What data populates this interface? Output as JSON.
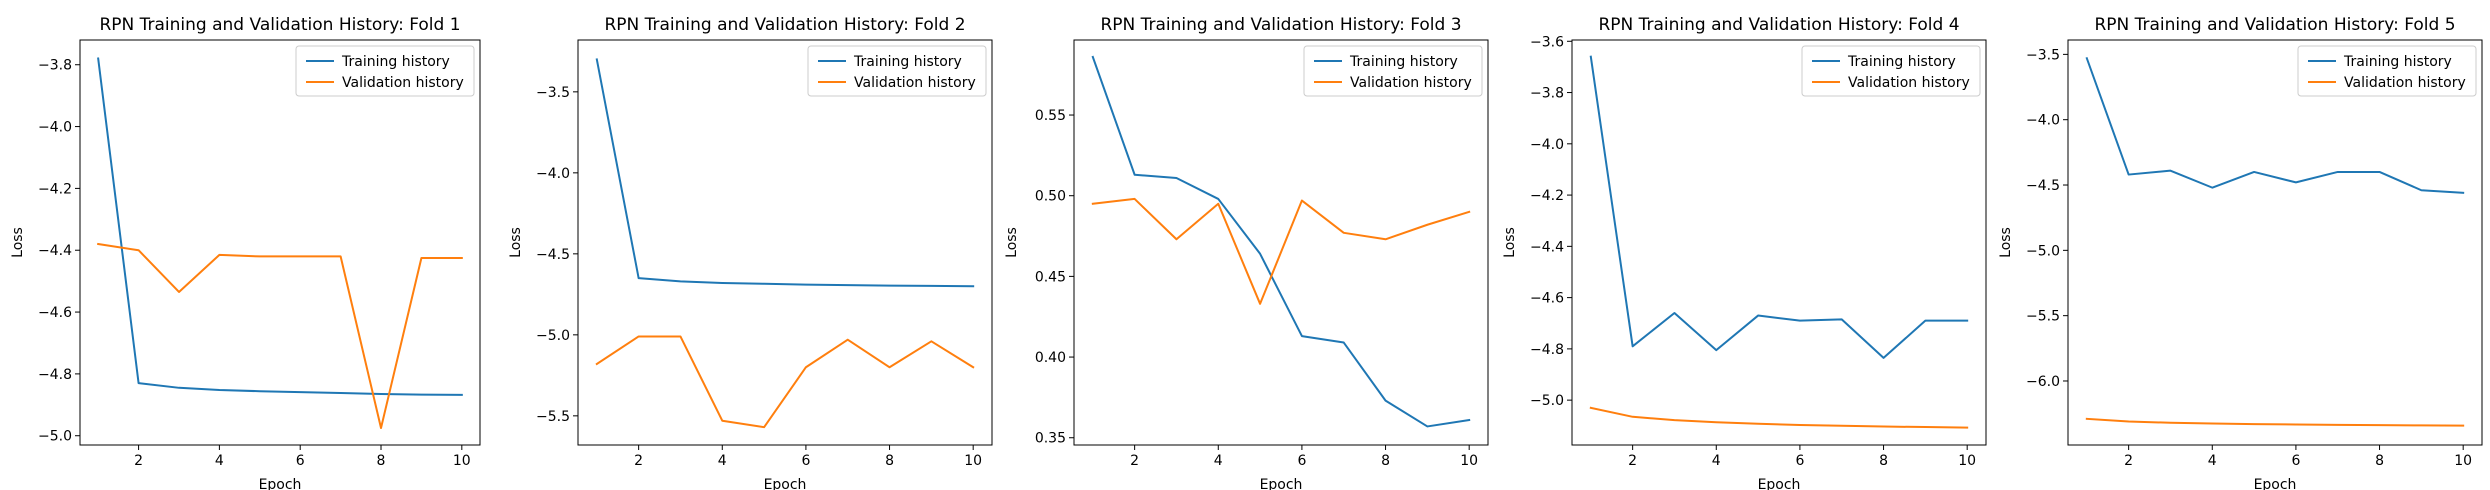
{
  "chart_data": [
    {
      "type": "line",
      "title": "RPN Training and Validation History: Fold 1",
      "xlabel": "Epoch",
      "ylabel": "Loss",
      "x": [
        1,
        2,
        3,
        4,
        5,
        6,
        7,
        8,
        9,
        10
      ],
      "xlim": [
        0.55,
        10.45
      ],
      "ylim": [
        -5.03,
        -3.72
      ],
      "xticks": [
        2,
        4,
        6,
        8,
        10
      ],
      "xtick_labels": [
        "2",
        "4",
        "6",
        "8",
        "10"
      ],
      "yticks": [
        -5.0,
        -4.8,
        -4.6,
        -4.4,
        -4.2,
        -4.0,
        -3.8
      ],
      "ytick_labels": [
        "−5.0",
        "−4.8",
        "−4.6",
        "−4.4",
        "−4.2",
        "−4.0",
        "−3.8"
      ],
      "grid": false,
      "legend": "top-right",
      "series": [
        {
          "name": "Training history",
          "color": "#1f77b4",
          "values": [
            -3.78,
            -4.83,
            -4.845,
            -4.852,
            -4.856,
            -4.859,
            -4.862,
            -4.865,
            -4.867,
            -4.868
          ]
        },
        {
          "name": "Validation history",
          "color": "#ff7f0e",
          "values": [
            -4.38,
            -4.4,
            -4.535,
            -4.415,
            -4.42,
            -4.42,
            -4.42,
            -4.975,
            -4.425,
            -4.425
          ]
        }
      ]
    },
    {
      "type": "line",
      "title": "RPN Training and Validation History: Fold 2",
      "xlabel": "Epoch",
      "ylabel": "Loss",
      "x": [
        1,
        2,
        3,
        4,
        5,
        6,
        7,
        8,
        9,
        10
      ],
      "xlim": [
        0.55,
        10.45
      ],
      "ylim": [
        -5.68,
        -3.18
      ],
      "xticks": [
        2,
        4,
        6,
        8,
        10
      ],
      "xtick_labels": [
        "2",
        "4",
        "6",
        "8",
        "10"
      ],
      "yticks": [
        -5.5,
        -5.0,
        -4.5,
        -4.0,
        -3.5
      ],
      "ytick_labels": [
        "−5.5",
        "−5.0",
        "−4.5",
        "−4.0",
        "−3.5"
      ],
      "grid": false,
      "legend": "top-right",
      "series": [
        {
          "name": "Training history",
          "color": "#1f77b4",
          "values": [
            -3.3,
            -4.65,
            -4.67,
            -4.68,
            -4.685,
            -4.69,
            -4.693,
            -4.696,
            -4.698,
            -4.7
          ]
        },
        {
          "name": "Validation history",
          "color": "#ff7f0e",
          "values": [
            -5.18,
            -5.01,
            -5.01,
            -5.53,
            -5.57,
            -5.2,
            -5.03,
            -5.2,
            -5.04,
            -5.2
          ]
        }
      ]
    },
    {
      "type": "line",
      "title": "RPN Training and Validation History: Fold 3",
      "xlabel": "Epoch",
      "ylabel": "Loss",
      "x": [
        1,
        2,
        3,
        4,
        5,
        6,
        7,
        8,
        9,
        10
      ],
      "xlim": [
        0.55,
        10.45
      ],
      "ylim": [
        0.3455,
        0.5965
      ],
      "xticks": [
        2,
        4,
        6,
        8,
        10
      ],
      "xtick_labels": [
        "2",
        "4",
        "6",
        "8",
        "10"
      ],
      "yticks": [
        0.35,
        0.4,
        0.45,
        0.5,
        0.55
      ],
      "ytick_labels": [
        "0.35",
        "0.40",
        "0.45",
        "0.50",
        "0.55"
      ],
      "grid": false,
      "legend": "top-right",
      "series": [
        {
          "name": "Training history",
          "color": "#1f77b4",
          "values": [
            0.586,
            0.513,
            0.511,
            0.498,
            0.464,
            0.413,
            0.409,
            0.373,
            0.357,
            0.361
          ]
        },
        {
          "name": "Validation history",
          "color": "#ff7f0e",
          "values": [
            0.495,
            0.498,
            0.473,
            0.495,
            0.433,
            0.497,
            0.477,
            0.473,
            0.482,
            0.49
          ]
        }
      ]
    },
    {
      "type": "line",
      "title": "RPN Training and Validation History: Fold 4",
      "xlabel": "Epoch",
      "ylabel": "Loss",
      "x": [
        1,
        2,
        3,
        4,
        5,
        6,
        7,
        8,
        9,
        10
      ],
      "xlim": [
        0.55,
        10.45
      ],
      "ylim": [
        -5.175,
        -3.595
      ],
      "xticks": [
        2,
        4,
        6,
        8,
        10
      ],
      "xtick_labels": [
        "2",
        "4",
        "6",
        "8",
        "10"
      ],
      "yticks": [
        -5.0,
        -4.8,
        -4.6,
        -4.4,
        -4.2,
        -4.0,
        -3.8,
        -3.6
      ],
      "ytick_labels": [
        "−5.0",
        "−4.8",
        "−4.6",
        "−4.4",
        "−4.2",
        "−4.0",
        "−3.8",
        "−3.6"
      ],
      "grid": false,
      "legend": "top-right",
      "series": [
        {
          "name": "Training history",
          "color": "#1f77b4",
          "values": [
            -3.66,
            -4.79,
            -4.66,
            -4.805,
            -4.67,
            -4.69,
            -4.685,
            -4.835,
            -4.69,
            -4.69
          ]
        },
        {
          "name": "Validation history",
          "color": "#ff7f0e",
          "values": [
            -5.03,
            -5.065,
            -5.078,
            -5.086,
            -5.092,
            -5.097,
            -5.1,
            -5.103,
            -5.105,
            -5.107
          ]
        }
      ]
    },
    {
      "type": "line",
      "title": "RPN Training and Validation History: Fold 5",
      "xlabel": "Epoch",
      "ylabel": "Loss",
      "x": [
        1,
        2,
        3,
        4,
        5,
        6,
        7,
        8,
        9,
        10
      ],
      "xlim": [
        0.55,
        10.45
      ],
      "ylim": [
        -6.49,
        -3.39
      ],
      "xticks": [
        2,
        4,
        6,
        8,
        10
      ],
      "xtick_labels": [
        "2",
        "4",
        "6",
        "8",
        "10"
      ],
      "yticks": [
        -6.0,
        -5.5,
        -5.0,
        -4.5,
        -4.0,
        -3.5
      ],
      "ytick_labels": [
        "−6.0",
        "−5.5",
        "−5.0",
        "−4.5",
        "−4.0",
        "−3.5"
      ],
      "grid": false,
      "legend": "top-right",
      "series": [
        {
          "name": "Training history",
          "color": "#1f77b4",
          "values": [
            -3.53,
            -4.42,
            -4.39,
            -4.52,
            -4.4,
            -4.48,
            -4.4,
            -4.4,
            -4.54,
            -4.56
          ]
        },
        {
          "name": "Validation history",
          "color": "#ff7f0e",
          "values": [
            -6.29,
            -6.31,
            -6.32,
            -6.325,
            -6.33,
            -6.333,
            -6.336,
            -6.338,
            -6.34,
            -6.342
          ]
        }
      ]
    }
  ]
}
